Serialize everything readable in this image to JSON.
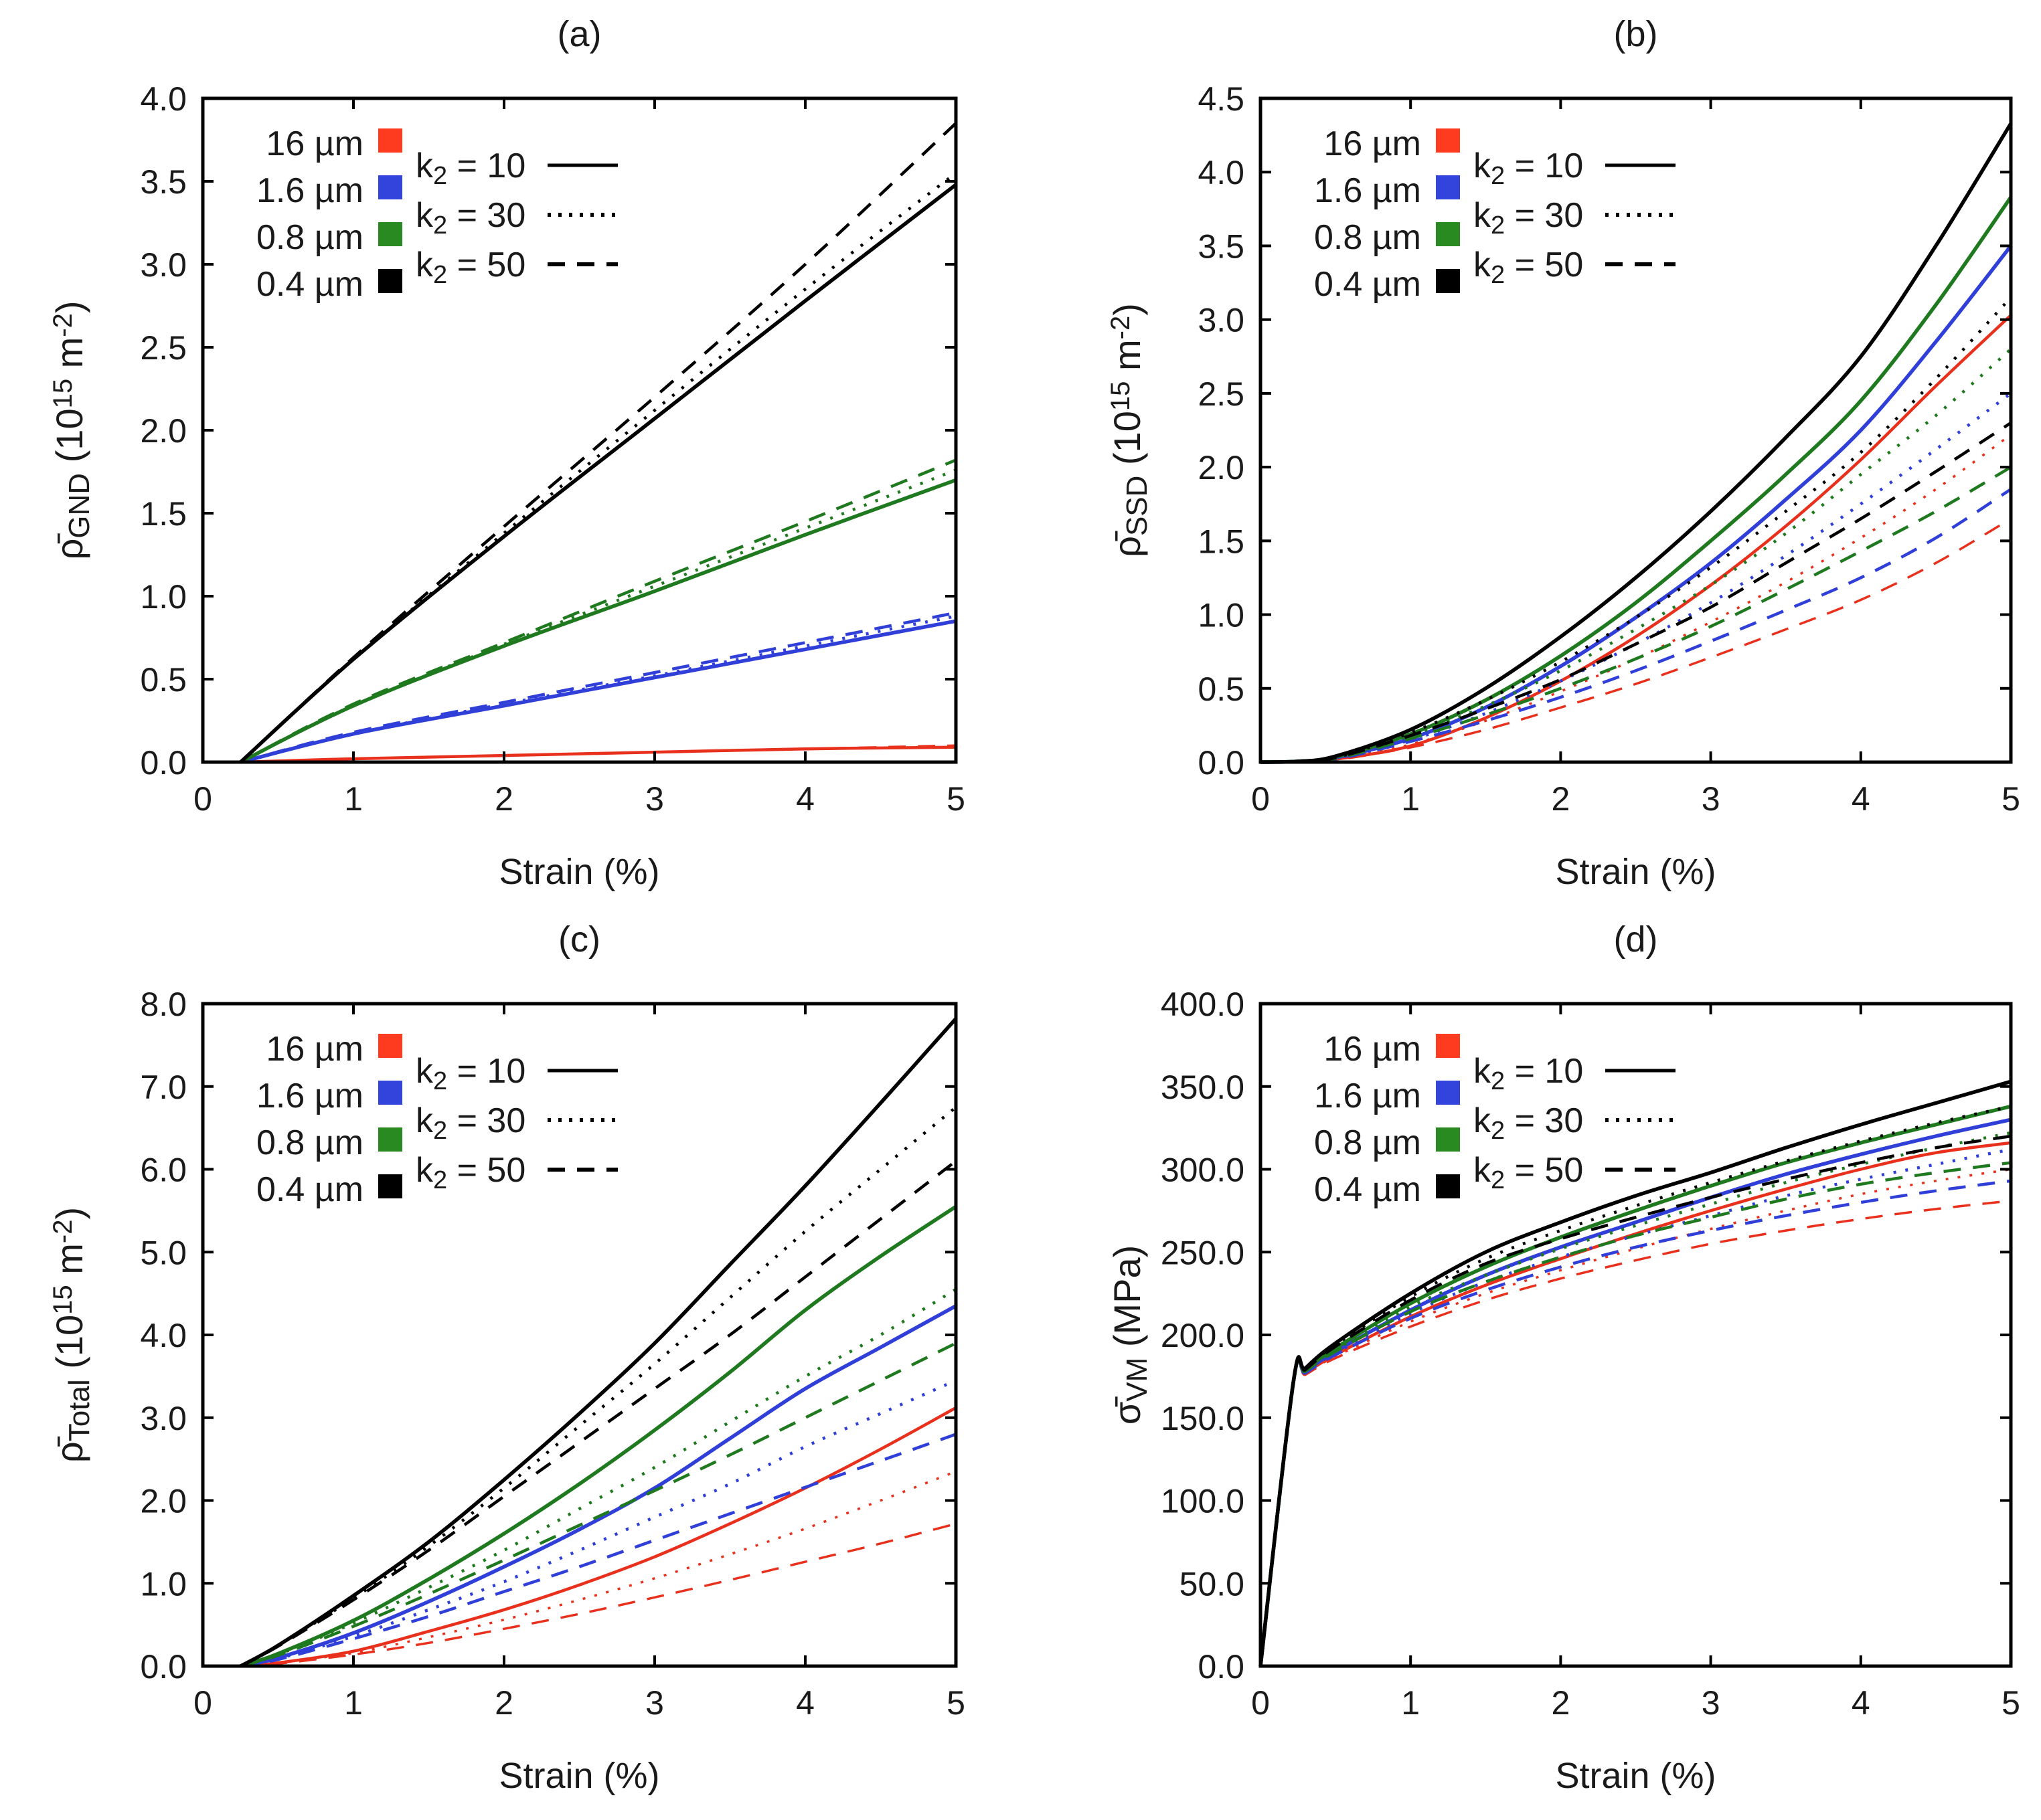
{
  "colors": {
    "16um": "#e8301c",
    "1.6um": "#2f3fd8",
    "0.8um": "#1f7a1f",
    "0.4um": "#000000"
  },
  "legend": {
    "sizes": [
      {
        "label": "16 µm",
        "color": "#ff3b1f"
      },
      {
        "label": "1.6 µm",
        "color": "#3344dd"
      },
      {
        "label": "0.8 µm",
        "color": "#2a8a22"
      },
      {
        "label": "0.4 µm",
        "color": "#000000"
      }
    ],
    "k2": [
      {
        "prefix": "k",
        "sub": "2",
        "rest": " = 10",
        "dash": "solid"
      },
      {
        "prefix": "k",
        "sub": "2",
        "rest": " = 30",
        "dash": "dotted"
      },
      {
        "prefix": "k",
        "sub": "2",
        "rest": " = 50",
        "dash": "dashed"
      }
    ]
  },
  "chart_data": [
    {
      "type": "line",
      "title": "(a)",
      "xlabel": "Strain (%)",
      "ylabel": {
        "sym": "ρ̄",
        "sub": "GND",
        "mid": " (10",
        "sup": "15",
        "mid2": " m",
        "sup2": "-2",
        "end": ")"
      },
      "xlim": [
        0,
        5
      ],
      "ylim": [
        0,
        4.0
      ],
      "xticks": [
        "0",
        "1",
        "2",
        "3",
        "4",
        "5"
      ],
      "yticks": [
        "0.0",
        "0.5",
        "1.0",
        "1.5",
        "2.0",
        "2.5",
        "3.0",
        "3.5",
        "4.0"
      ],
      "x": [
        0.25,
        1.0,
        2.0,
        3.0,
        4.0,
        5.0
      ],
      "series": [
        {
          "name": "0.4 µm k2=10",
          "size": "0.4um",
          "k2": 10,
          "values": [
            0,
            0.62,
            1.36,
            2.07,
            2.78,
            3.48
          ]
        },
        {
          "name": "0.4 µm k2=30",
          "size": "0.4um",
          "k2": 30,
          "values": [
            0,
            0.62,
            1.38,
            2.12,
            2.85,
            3.55
          ]
        },
        {
          "name": "0.4 µm k2=50",
          "size": "0.4um",
          "k2": 50,
          "values": [
            0,
            0.63,
            1.42,
            2.2,
            3.0,
            3.85
          ]
        },
        {
          "name": "0.8 µm k2=10",
          "size": "0.8um",
          "k2": 10,
          "values": [
            0,
            0.34,
            0.7,
            1.03,
            1.37,
            1.7
          ]
        },
        {
          "name": "0.8 µm k2=30",
          "size": "0.8um",
          "k2": 30,
          "values": [
            0,
            0.34,
            0.71,
            1.06,
            1.41,
            1.76
          ]
        },
        {
          "name": "0.8 µm k2=50",
          "size": "0.8um",
          "k2": 50,
          "values": [
            0,
            0.35,
            0.72,
            1.09,
            1.45,
            1.82
          ]
        },
        {
          "name": "1.6 µm k2=10",
          "size": "1.6um",
          "k2": 10,
          "values": [
            0,
            0.17,
            0.34,
            0.51,
            0.68,
            0.85
          ]
        },
        {
          "name": "1.6 µm k2=30",
          "size": "1.6um",
          "k2": 30,
          "values": [
            0,
            0.17,
            0.35,
            0.52,
            0.7,
            0.88
          ]
        },
        {
          "name": "1.6 µm k2=50",
          "size": "1.6um",
          "k2": 50,
          "values": [
            0,
            0.18,
            0.36,
            0.54,
            0.72,
            0.9
          ]
        },
        {
          "name": "16 µm k2=10",
          "size": "16um",
          "k2": 10,
          "values": [
            0,
            0.02,
            0.04,
            0.06,
            0.08,
            0.09
          ]
        },
        {
          "name": "16 µm k2=30",
          "size": "16um",
          "k2": 30,
          "values": [
            0,
            0.02,
            0.04,
            0.06,
            0.08,
            0.09
          ]
        },
        {
          "name": "16 µm k2=50",
          "size": "16um",
          "k2": 50,
          "values": [
            0,
            0.02,
            0.04,
            0.06,
            0.08,
            0.1
          ]
        }
      ]
    },
    {
      "type": "line",
      "title": "(b)",
      "xlabel": "Strain (%)",
      "ylabel": {
        "sym": "ρ̄",
        "sub": "SSD",
        "mid": " (10",
        "sup": "15",
        "mid2": " m",
        "sup2": "-2",
        "end": ")"
      },
      "xlim": [
        0,
        5
      ],
      "ylim": [
        0,
        4.5
      ],
      "xticks": [
        "0",
        "1",
        "2",
        "3",
        "4",
        "5"
      ],
      "yticks": [
        "0.0",
        "0.5",
        "1.0",
        "1.5",
        "2.0",
        "2.5",
        "3.0",
        "3.5",
        "4.0",
        "4.5"
      ],
      "x": [
        0,
        0.25,
        0.5,
        1.0,
        1.5,
        2.0,
        2.5,
        3.0,
        3.5,
        4.0,
        4.5,
        5.0
      ],
      "series": [
        {
          "name": "0.4 µm k2=10",
          "size": "0.4um",
          "k2": 10,
          "values": [
            0,
            0.005,
            0.04,
            0.22,
            0.5,
            0.85,
            1.25,
            1.7,
            2.2,
            2.75,
            3.5,
            4.33
          ]
        },
        {
          "name": "0.8 µm k2=10",
          "size": "0.8um",
          "k2": 10,
          "values": [
            0,
            0.005,
            0.035,
            0.19,
            0.42,
            0.72,
            1.08,
            1.5,
            1.95,
            2.45,
            3.1,
            3.83
          ]
        },
        {
          "name": "1.6 µm k2=10",
          "size": "1.6um",
          "k2": 10,
          "values": [
            0,
            0.004,
            0.03,
            0.16,
            0.37,
            0.65,
            0.98,
            1.35,
            1.78,
            2.25,
            2.85,
            3.5
          ]
        },
        {
          "name": "16 µm k2=10",
          "size": "16um",
          "k2": 10,
          "values": [
            0,
            0.003,
            0.02,
            0.11,
            0.3,
            0.55,
            0.85,
            1.2,
            1.6,
            2.05,
            2.55,
            3.03
          ]
        },
        {
          "name": "0.4 µm k2=30",
          "size": "0.4um",
          "k2": 30,
          "values": [
            0,
            0.004,
            0.03,
            0.2,
            0.42,
            0.68,
            0.98,
            1.32,
            1.7,
            2.1,
            2.6,
            3.15
          ]
        },
        {
          "name": "0.8 µm k2=30",
          "size": "0.8um",
          "k2": 30,
          "values": [
            0,
            0.004,
            0.03,
            0.18,
            0.38,
            0.62,
            0.9,
            1.2,
            1.55,
            1.95,
            2.35,
            2.8
          ]
        },
        {
          "name": "1.6 µm k2=30",
          "size": "1.6um",
          "k2": 30,
          "values": [
            0,
            0.003,
            0.025,
            0.15,
            0.33,
            0.55,
            0.8,
            1.08,
            1.4,
            1.75,
            2.12,
            2.5
          ]
        },
        {
          "name": "16 µm k2=30",
          "size": "16um",
          "k2": 30,
          "values": [
            0,
            0.003,
            0.02,
            0.12,
            0.28,
            0.48,
            0.7,
            0.95,
            1.22,
            1.52,
            1.85,
            2.22
          ]
        },
        {
          "name": "0.4 µm k2=50",
          "size": "0.4um",
          "k2": 50,
          "values": [
            0,
            0.004,
            0.03,
            0.18,
            0.36,
            0.56,
            0.8,
            1.05,
            1.35,
            1.65,
            1.97,
            2.3
          ]
        },
        {
          "name": "0.8 µm k2=50",
          "size": "0.8um",
          "k2": 50,
          "values": [
            0,
            0.003,
            0.025,
            0.16,
            0.32,
            0.5,
            0.7,
            0.92,
            1.17,
            1.43,
            1.7,
            2.0
          ]
        },
        {
          "name": "1.6 µm k2=50",
          "size": "1.6um",
          "k2": 50,
          "values": [
            0,
            0.003,
            0.02,
            0.14,
            0.28,
            0.44,
            0.62,
            0.82,
            1.03,
            1.25,
            1.52,
            1.85
          ]
        },
        {
          "name": "16 µm k2=50",
          "size": "16um",
          "k2": 50,
          "values": [
            0,
            0.002,
            0.015,
            0.1,
            0.22,
            0.37,
            0.53,
            0.71,
            0.9,
            1.1,
            1.35,
            1.65
          ]
        }
      ]
    },
    {
      "type": "line",
      "title": "(c)",
      "xlabel": "Strain (%)",
      "ylabel": {
        "sym": "ρ̄",
        "sub": "Total",
        "mid": " (10",
        "sup": "15",
        "mid2": " m",
        "sup2": "-2",
        "end": ")"
      },
      "xlim": [
        0,
        5
      ],
      "ylim": [
        0,
        8.0
      ],
      "xticks": [
        "0",
        "1",
        "2",
        "3",
        "4",
        "5"
      ],
      "yticks": [
        "0.0",
        "1.0",
        "2.0",
        "3.0",
        "4.0",
        "5.0",
        "6.0",
        "7.0",
        "8.0"
      ],
      "x": [
        0.25,
        0.5,
        1.0,
        1.5,
        2.0,
        2.5,
        3.0,
        3.5,
        4.0,
        4.5,
        5.0
      ],
      "series": [
        {
          "name": "0.4 µm k2=10",
          "size": "0.4um",
          "k2": 10,
          "values": [
            0,
            0.25,
            0.85,
            1.5,
            2.25,
            3.05,
            3.9,
            4.85,
            5.8,
            6.8,
            7.82
          ]
        },
        {
          "name": "0.4 µm k2=30",
          "size": "0.4um",
          "k2": 30,
          "values": [
            0,
            0.25,
            0.82,
            1.45,
            2.15,
            2.9,
            3.65,
            4.45,
            5.25,
            6.0,
            6.75
          ]
        },
        {
          "name": "0.4 µm k2=50",
          "size": "0.4um",
          "k2": 50,
          "values": [
            0,
            0.24,
            0.8,
            1.4,
            2.05,
            2.7,
            3.35,
            4.0,
            4.7,
            5.4,
            6.1
          ]
        },
        {
          "name": "0.8 µm k2=10",
          "size": "0.8um",
          "k2": 10,
          "values": [
            0,
            0.15,
            0.55,
            1.05,
            1.6,
            2.2,
            2.85,
            3.55,
            4.3,
            4.95,
            5.55
          ]
        },
        {
          "name": "0.8 µm k2=30",
          "size": "0.8um",
          "k2": 30,
          "values": [
            0,
            0.14,
            0.52,
            0.95,
            1.4,
            1.9,
            2.4,
            2.95,
            3.5,
            4.0,
            4.55
          ]
        },
        {
          "name": "0.8 µm k2=50",
          "size": "0.8um",
          "k2": 50,
          "values": [
            0,
            0.13,
            0.48,
            0.87,
            1.28,
            1.7,
            2.12,
            2.55,
            3.0,
            3.45,
            3.9
          ]
        },
        {
          "name": "1.6 µm k2=10",
          "size": "1.6um",
          "k2": 10,
          "values": [
            0,
            0.1,
            0.4,
            0.78,
            1.2,
            1.65,
            2.15,
            2.75,
            3.35,
            3.85,
            4.35
          ]
        },
        {
          "name": "1.6 µm k2=30",
          "size": "1.6um",
          "k2": 30,
          "values": [
            0,
            0.09,
            0.36,
            0.68,
            1.02,
            1.4,
            1.8,
            2.2,
            2.65,
            3.05,
            3.45
          ]
        },
        {
          "name": "1.6 µm k2=50",
          "size": "1.6um",
          "k2": 50,
          "values": [
            0,
            0.08,
            0.33,
            0.6,
            0.9,
            1.2,
            1.52,
            1.84,
            2.16,
            2.48,
            2.8
          ]
        },
        {
          "name": "16 µm k2=10",
          "size": "16um",
          "k2": 10,
          "values": [
            0,
            0.04,
            0.18,
            0.42,
            0.68,
            0.98,
            1.32,
            1.72,
            2.15,
            2.62,
            3.12
          ]
        },
        {
          "name": "16 µm k2=30",
          "size": "16um",
          "k2": 30,
          "values": [
            0,
            0.04,
            0.16,
            0.35,
            0.56,
            0.8,
            1.06,
            1.35,
            1.66,
            2.0,
            2.35
          ]
        },
        {
          "name": "16 µm k2=50",
          "size": "16um",
          "k2": 50,
          "values": [
            0,
            0.03,
            0.14,
            0.28,
            0.45,
            0.63,
            0.83,
            1.04,
            1.26,
            1.48,
            1.72
          ]
        }
      ]
    },
    {
      "type": "line",
      "title": "(d)",
      "xlabel": "Strain (%)",
      "ylabel": {
        "sym": "σ̄",
        "sub": "VM",
        "mid": " (MPa)",
        "sup": "",
        "mid2": "",
        "sup2": "",
        "end": ""
      },
      "xlim": [
        0,
        5
      ],
      "ylim": [
        0,
        400.0
      ],
      "xticks": [
        "0",
        "1",
        "2",
        "3",
        "4",
        "5"
      ],
      "yticks": [
        "0.0",
        "50.0",
        "100.0",
        "150.0",
        "200.0",
        "250.0",
        "300.0",
        "350.0",
        "400.0"
      ],
      "x": [
        0,
        0.22,
        0.3,
        0.5,
        1.0,
        1.5,
        2.0,
        2.5,
        3.0,
        3.5,
        4.0,
        4.5,
        5.0
      ],
      "series": [
        {
          "name": "0.4 µm k2=10",
          "size": "0.4um",
          "k2": 10,
          "values": [
            0,
            172,
            180,
            195,
            225,
            250,
            268,
            284,
            298,
            313,
            327,
            340,
            353
          ]
        },
        {
          "name": "0.4 µm k2=30",
          "size": "0.4um",
          "k2": 30,
          "values": [
            0,
            172,
            180,
            194,
            223,
            246,
            263,
            278,
            292,
            305,
            317,
            328,
            338
          ]
        },
        {
          "name": "0.4 µm k2=50",
          "size": "0.4um",
          "k2": 50,
          "values": [
            0,
            172,
            179,
            193,
            221,
            243,
            258,
            271,
            283,
            294,
            304,
            313,
            320
          ]
        },
        {
          "name": "0.8 µm k2=10",
          "size": "0.8um",
          "k2": 10,
          "values": [
            0,
            172,
            179,
            192,
            219,
            241,
            259,
            275,
            290,
            304,
            316,
            327,
            338
          ]
        },
        {
          "name": "0.8 µm k2=30",
          "size": "0.8um",
          "k2": 30,
          "values": [
            0,
            172,
            179,
            191,
            217,
            236,
            252,
            266,
            279,
            292,
            303,
            313,
            322
          ]
        },
        {
          "name": "0.8 µm k2=50",
          "size": "0.8um",
          "k2": 50,
          "values": [
            0,
            172,
            178,
            190,
            214,
            232,
            247,
            260,
            271,
            282,
            291,
            298,
            304
          ]
        },
        {
          "name": "1.6 µm k2=10",
          "size": "1.6um",
          "k2": 10,
          "values": [
            0,
            172,
            178,
            190,
            215,
            236,
            253,
            268,
            283,
            297,
            309,
            320,
            330
          ]
        },
        {
          "name": "1.6 µm k2=30",
          "size": "1.6um",
          "k2": 30,
          "values": [
            0,
            172,
            178,
            189,
            213,
            232,
            247,
            260,
            272,
            284,
            294,
            303,
            312
          ]
        },
        {
          "name": "1.6 µm k2=50",
          "size": "1.6um",
          "k2": 50,
          "values": [
            0,
            172,
            177,
            188,
            210,
            227,
            241,
            253,
            263,
            272,
            280,
            287,
            293
          ]
        },
        {
          "name": "16 µm k2=10",
          "size": "16um",
          "k2": 10,
          "values": [
            0,
            172,
            177,
            188,
            211,
            230,
            246,
            261,
            275,
            288,
            300,
            310,
            316
          ]
        },
        {
          "name": "16 µm k2=30",
          "size": "16um",
          "k2": 30,
          "values": [
            0,
            172,
            177,
            187,
            208,
            225,
            239,
            252,
            264,
            275,
            285,
            293,
            300
          ]
        },
        {
          "name": "16 µm k2=50",
          "size": "16um",
          "k2": 50,
          "values": [
            0,
            172,
            176,
            186,
            205,
            221,
            234,
            245,
            255,
            263,
            270,
            276,
            281
          ]
        }
      ]
    }
  ]
}
